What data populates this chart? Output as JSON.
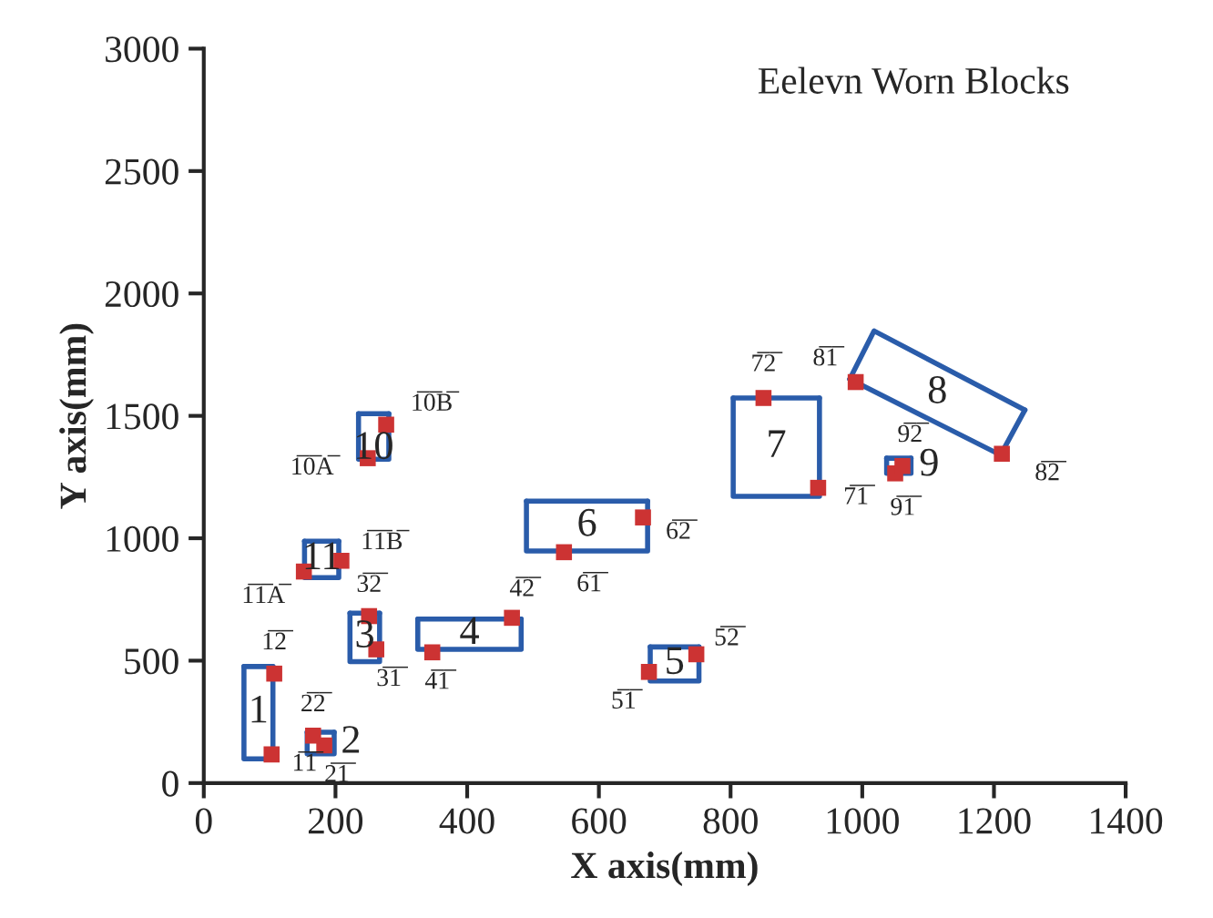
{
  "chart_data": {
    "type": "line",
    "title": "Eelevn Worn Blocks",
    "xlabel": "X axis(mm)",
    "ylabel": "Y axis(mm)",
    "xlim": [
      0,
      1400
    ],
    "ylim": [
      0,
      3000
    ],
    "xticks": [
      0,
      200,
      400,
      600,
      800,
      1000,
      1200,
      1400
    ],
    "yticks": [
      0,
      500,
      1000,
      1500,
      2000,
      2500,
      3000
    ],
    "grid": false,
    "series": [
      {
        "type": "scatter",
        "color": "#cc3333",
        "marker": "square",
        "x": [
          103,
          107,
          183,
          166,
          262,
          251,
          347,
          468,
          676,
          748,
          547,
          667,
          933,
          850,
          990,
          1212,
          1050,
          1061,
          249,
          277,
          152,
          209
        ],
        "values": [
          117,
          447,
          154,
          194,
          546,
          682,
          534,
          675,
          454,
          526,
          943,
          1085,
          1206,
          1573,
          1638,
          1345,
          1265,
          1295,
          1327,
          1464,
          864,
          908
        ]
      },
      {
        "name": "1",
        "color": "#2a5caa",
        "x": [
          61,
          61,
          105,
          105
        ],
        "values": [
          476,
          99,
          99,
          476
        ]
      },
      {
        "color": "#2a5caa",
        "x": [
          61,
          105
        ],
        "values": [
          476,
          476
        ]
      },
      {
        "name": "2",
        "color": "#2a5caa",
        "x": [
          157,
          157,
          198,
          198
        ],
        "values": [
          208,
          119,
          119,
          208
        ]
      },
      {
        "color": "#2a5caa",
        "x": [
          157,
          198
        ],
        "values": [
          208,
          208
        ]
      },
      {
        "name": "3",
        "color": "#2a5caa",
        "x": [
          222,
          222,
          267,
          267
        ],
        "values": [
          694,
          496,
          496,
          694
        ]
      },
      {
        "color": "#2a5caa",
        "x": [
          222,
          267
        ],
        "values": [
          694,
          694
        ]
      },
      {
        "name": "4",
        "color": "#2a5caa",
        "x": [
          325,
          325,
          482,
          482
        ],
        "values": [
          670,
          546,
          546,
          670
        ]
      },
      {
        "color": "#2a5caa",
        "x": [
          325,
          482
        ],
        "values": [
          670,
          670
        ]
      },
      {
        "name": "5",
        "color": "#2a5caa",
        "x": [
          678,
          678,
          752,
          752
        ],
        "values": [
          556,
          417,
          417,
          556
        ]
      },
      {
        "color": "#2a5caa",
        "x": [
          678,
          752
        ],
        "values": [
          556,
          556
        ]
      },
      {
        "name": "6",
        "color": "#2a5caa",
        "x": [
          490,
          490,
          674,
          674
        ],
        "values": [
          1152,
          948,
          948,
          1152
        ]
      },
      {
        "color": "#2a5caa",
        "x": [
          490,
          674
        ],
        "values": [
          1152,
          1152
        ]
      },
      {
        "name": "7",
        "color": "#2a5caa",
        "x": [
          804,
          804,
          935,
          935
        ],
        "values": [
          1573,
          1171,
          1171,
          1573
        ]
      },
      {
        "color": "#2a5caa",
        "x": [
          804,
          935
        ],
        "values": [
          1573,
          1573
        ]
      },
      {
        "name": "8",
        "color": "#2a5caa",
        "x": [
          981,
          1018,
          1247
        ],
        "values": [
          1650,
          1847,
          1524
        ]
      },
      {
        "color": "#2a5caa",
        "x": [
          981,
          1210,
          1247
        ],
        "values": [
          1650,
          1340,
          1524
        ]
      },
      {
        "name": "9",
        "color": "#2a5caa",
        "x": [
          1037,
          1037,
          1074,
          1074
        ],
        "values": [
          1327,
          1265,
          1265,
          1327
        ]
      },
      {
        "color": "#2a5caa",
        "x": [
          1037,
          1074
        ],
        "values": [
          1327,
          1327
        ]
      },
      {
        "name": "10",
        "color": "#2a5caa",
        "x": [
          235,
          235,
          281,
          281
        ],
        "values": [
          1509,
          1323,
          1323,
          1509
        ]
      },
      {
        "color": "#2a5caa",
        "x": [
          235,
          281
        ],
        "values": [
          1509,
          1509
        ]
      },
      {
        "name": "11",
        "color": "#2a5caa",
        "x": [
          153,
          153,
          205,
          205
        ],
        "values": [
          988,
          839,
          839,
          988
        ]
      },
      {
        "color": "#2a5caa",
        "x": [
          153,
          205
        ],
        "values": [
          988,
          988
        ]
      }
    ],
    "annotations": [
      {
        "text": "1̅1̅",
        "x": 103,
        "y": 117
      },
      {
        "text": "1̅2̅",
        "x": 107,
        "y": 447
      },
      {
        "text": "2̅1̅",
        "x": 183,
        "y": 154
      },
      {
        "text": "2̅2̅",
        "x": 166,
        "y": 194
      },
      {
        "text": "3̅1̅",
        "x": 262,
        "y": 546
      },
      {
        "text": "3̅2̅",
        "x": 251,
        "y": 682
      },
      {
        "text": "4̅1̅",
        "x": 347,
        "y": 534
      },
      {
        "text": "4̅2̅",
        "x": 468,
        "y": 675
      },
      {
        "text": "5̅1̅",
        "x": 676,
        "y": 454
      },
      {
        "text": "5̅2̅",
        "x": 748,
        "y": 526
      },
      {
        "text": "6̅1̅",
        "x": 547,
        "y": 943
      },
      {
        "text": "6̅2̅",
        "x": 667,
        "y": 1085
      },
      {
        "text": "7̅1̅",
        "x": 933,
        "y": 1206
      },
      {
        "text": "7̅2̅",
        "x": 850,
        "y": 1573
      },
      {
        "text": "8̅1̅",
        "x": 990,
        "y": 1638
      },
      {
        "text": "8̅2̅",
        "x": 1212,
        "y": 1345
      },
      {
        "text": "9̅1̅",
        "x": 1050,
        "y": 1265
      },
      {
        "text": "9̅2̅",
        "x": 1061,
        "y": 1295
      },
      {
        "text": "1̅0̅A̅",
        "x": 249,
        "y": 1327
      },
      {
        "text": "1̅0̅B̅",
        "x": 277,
        "y": 1464
      },
      {
        "text": "1̅1̅A̅",
        "x": 152,
        "y": 864
      },
      {
        "text": "1̅1̅B̅",
        "x": 209,
        "y": 908
      }
    ]
  }
}
